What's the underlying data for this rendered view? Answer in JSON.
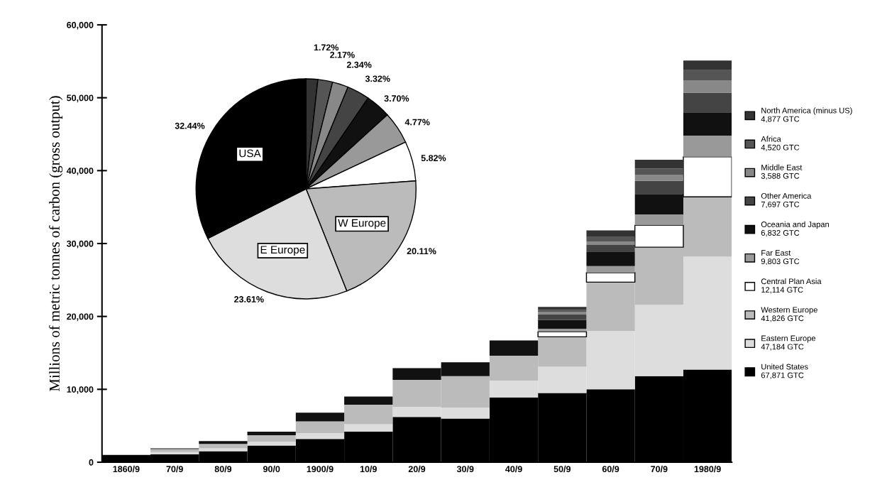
{
  "chart_data": [
    {
      "type": "bar",
      "stacked": true,
      "ylabel": "Millions of metric tonnes of carbon (gross output)",
      "categories": [
        "1860/9",
        "70/9",
        "80/9",
        "90/0",
        "1900/9",
        "10/9",
        "20/9",
        "30/9",
        "40/9",
        "50/9",
        "60/9",
        "70/9",
        "1980/9"
      ],
      "ylim": [
        0,
        60000
      ],
      "yticks": [
        0,
        {
          "value": 10000,
          "label": "10,000"
        },
        {
          "value": 20000,
          "label": "20,000"
        },
        {
          "value": 30000,
          "label": "30,000"
        },
        {
          "value": 40000,
          "label": "40,000"
        },
        {
          "value": 50000,
          "label": "50,000"
        },
        {
          "value": 60000,
          "label": "60,000"
        }
      ],
      "grid": false,
      "legend": "right",
      "series": [
        {
          "name": "United States\n67,871 GTC",
          "color": "#000000",
          "values": [
            1000,
            1100,
            1500,
            2300,
            3200,
            4200,
            6200,
            6000,
            8900,
            9500,
            10000,
            11800,
            12700
          ]
        },
        {
          "name": "Eastern Europe\n47,184 GTC",
          "color": "#dddddd",
          "values": [
            null,
            300,
            400,
            500,
            800,
            1000,
            1400,
            1500,
            2300,
            3600,
            8000,
            9800,
            15500
          ]
        },
        {
          "name": "Western Europe\n41,826 GTC",
          "color": "#bbbbbb",
          "values": [
            null,
            400,
            600,
            900,
            1600,
            2700,
            3700,
            4300,
            3400,
            4100,
            6700,
            7900,
            8200
          ]
        },
        {
          "name": "Central Plan Asia\n12,114 GTC",
          "color": "#ffffff",
          "values": [
            null,
            null,
            null,
            null,
            null,
            null,
            null,
            null,
            null,
            700,
            1300,
            3000,
            5500
          ]
        },
        {
          "name": "Far East\n9,803 GTC",
          "color": "#999999",
          "values": [
            null,
            null,
            null,
            null,
            null,
            null,
            null,
            null,
            null,
            400,
            900,
            1500,
            2900
          ]
        },
        {
          "name": "Oceania and Japan\n6,832 GTC",
          "color": "#111111",
          "values": [
            null,
            100,
            400,
            500,
            1200,
            1100,
            1600,
            1900,
            2100,
            1200,
            2000,
            2800,
            3200
          ]
        },
        {
          "name": "Other America\n7,697 GTC",
          "color": "#444444",
          "values": [
            null,
            null,
            null,
            null,
            null,
            null,
            null,
            null,
            null,
            800,
            900,
            1800,
            2700
          ]
        },
        {
          "name": "Middle East\n3,588 GTC",
          "color": "#888888",
          "values": [
            null,
            null,
            null,
            null,
            null,
            null,
            null,
            null,
            null,
            300,
            500,
            800,
            1700
          ]
        },
        {
          "name": "Africa\n4,520 GTC",
          "color": "#555555",
          "values": [
            null,
            null,
            null,
            null,
            null,
            null,
            null,
            null,
            null,
            300,
            600,
            900,
            1400
          ]
        },
        {
          "name": "North America (minus US)\n4,877 GTC",
          "color": "#333333",
          "values": [
            null,
            null,
            null,
            null,
            null,
            null,
            null,
            null,
            null,
            400,
            900,
            1200,
            1300
          ]
        }
      ]
    },
    {
      "type": "pie",
      "categories": [
        null,
        null,
        null,
        null,
        null,
        null,
        null,
        "W Europe",
        "E Europe",
        "USA"
      ],
      "values": [
        1.72,
        2.17,
        2.34,
        3.32,
        3.7,
        4.77,
        5.82,
        20.11,
        23.61,
        32.44
      ],
      "value_labels": [
        "1.72%",
        "2.17%",
        "2.34%",
        "3.32%",
        "3.70%",
        "4.77%",
        "5.82%",
        "20.11%",
        "23.61%",
        "32.44%"
      ],
      "colors": [
        "#333333",
        "#555555",
        "#888888",
        "#444444",
        "#111111",
        "#999999",
        "#ffffff",
        "#bbbbbb",
        "#dddddd",
        "#000000"
      ]
    }
  ]
}
